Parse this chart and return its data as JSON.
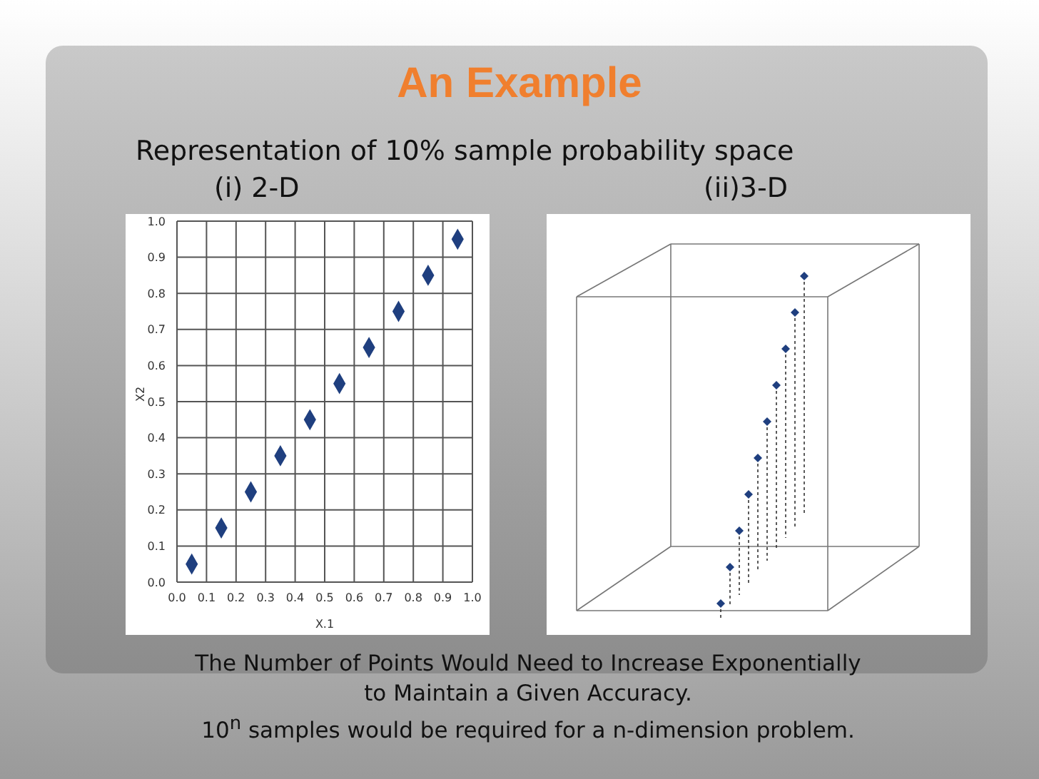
{
  "chart_data": {
    "type": "scatter",
    "title": "An Example",
    "subtitle": "Representation of 10% sample probability space",
    "annotations": [
      "(i) 2-D",
      "(ii)3-D",
      "The Number of Points Would Need to Increase Exponentially",
      "to Maintain a Given Accuracy.",
      "10$^{n}$ samples would be required for a n-dimension problem."
    ],
    "xlabel": "X.1",
    "ylabel": "X2",
    "series": [
      {
        "color": "#1f3f7f",
        "x": [
          0.05,
          0.15,
          0.25,
          0.35,
          0.45,
          0.55,
          0.65,
          0.75,
          0.85,
          0.95
        ],
        "values": [
          0.05,
          0.15,
          0.25,
          0.35,
          0.45,
          0.55,
          0.65,
          0.75,
          0.85,
          0.95
        ]
      }
    ],
    "xlim": [
      0,
      1
    ],
    "ylim": [
      0,
      1
    ],
    "xticks": [
      {
        "value": 0,
        "label": "0.0"
      },
      0.1,
      0.2,
      0.3,
      0.4,
      0.5,
      0.6,
      0.7,
      0.8,
      0.9,
      {
        "value": 1,
        "label": "1.0"
      }
    ],
    "yticks": [
      {
        "value": 0,
        "label": "0.0"
      },
      0.1,
      0.2,
      0.3,
      0.4,
      0.5,
      0.6,
      0.7,
      0.8,
      0.9,
      {
        "value": 1,
        "label": "1.0"
      }
    ],
    "grid": true,
    "marker": "diamond",
    "legend": false
  }
}
